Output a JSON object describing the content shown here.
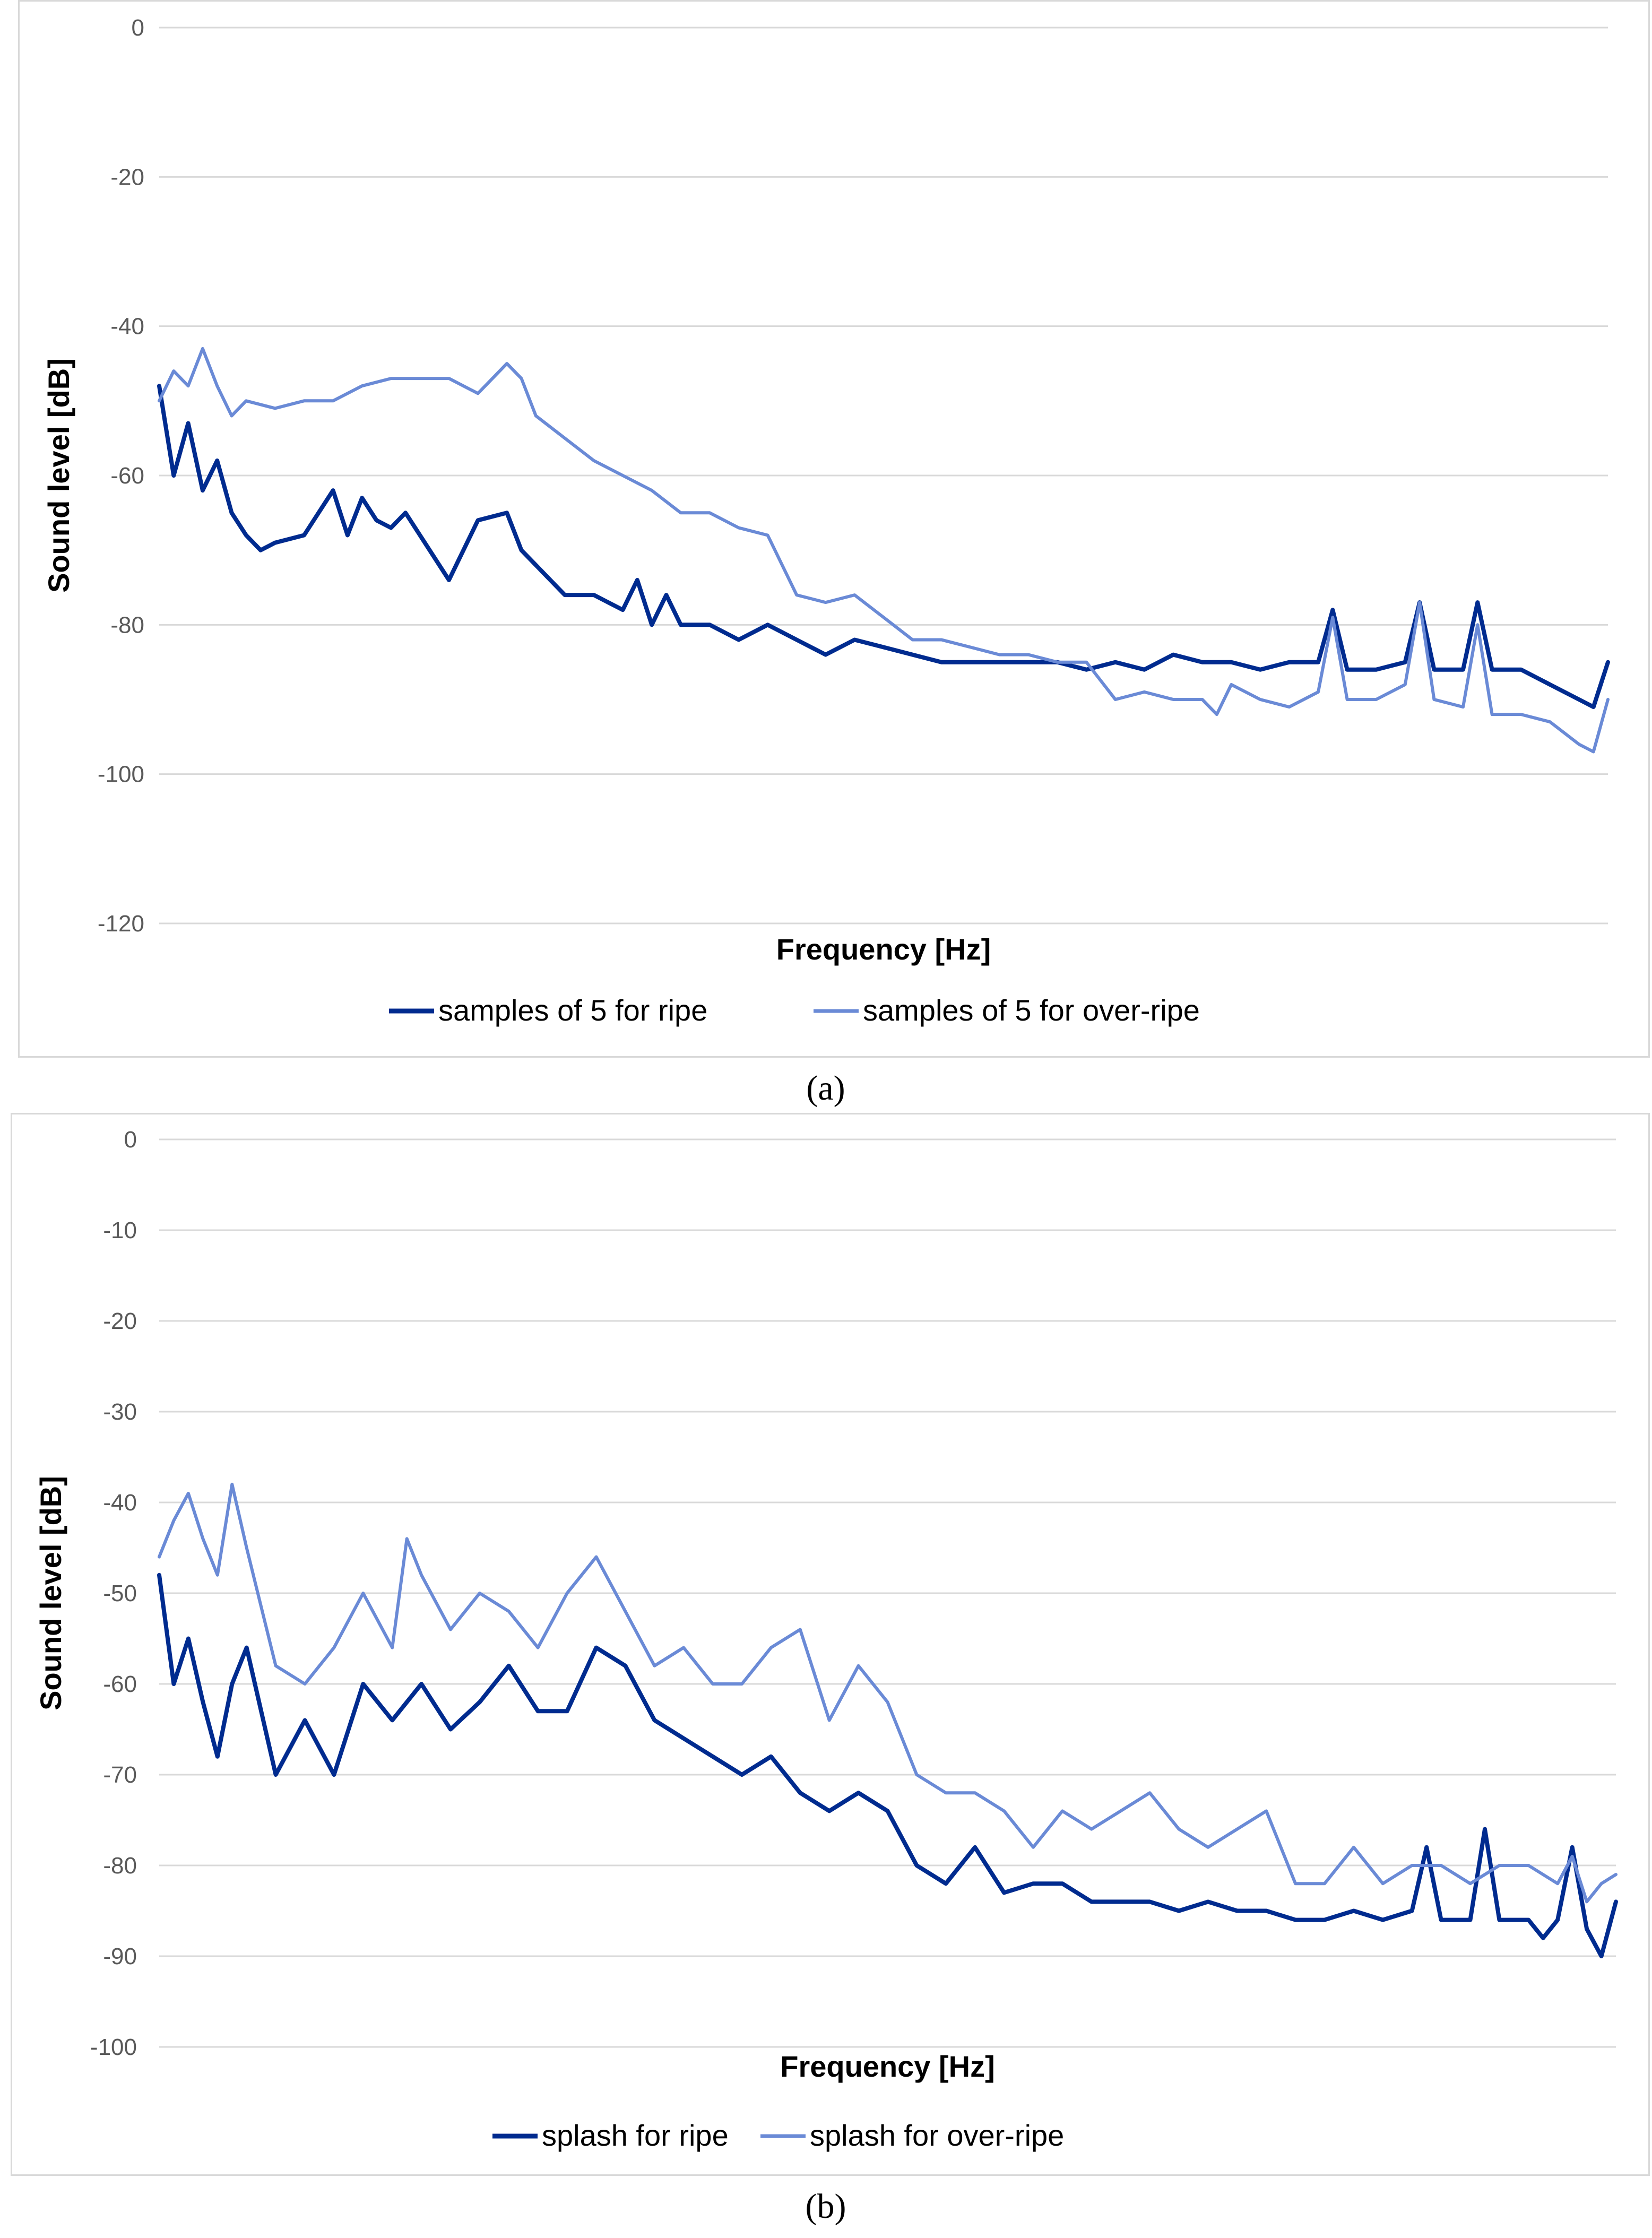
{
  "chart_data": [
    {
      "id": "a",
      "type": "line",
      "caption": "(a)",
      "xlabel": "Frequency [Hz]",
      "ylabel": "Sound level [dB]",
      "ylim": [
        -120,
        0
      ],
      "yticks": [
        0,
        -20,
        -40,
        -60,
        -80,
        -100,
        -120
      ],
      "xlim": [
        0,
        1
      ],
      "grid": true,
      "legend": "bottom",
      "series": [
        {
          "name": "samples of 5 for ripe",
          "color": "#002b8f",
          "x": [
            0,
            0.01,
            0.02,
            0.03,
            0.04,
            0.05,
            0.06,
            0.07,
            0.08,
            0.1,
            0.12,
            0.13,
            0.14,
            0.15,
            0.16,
            0.17,
            0.18,
            0.2,
            0.22,
            0.24,
            0.25,
            0.26,
            0.28,
            0.3,
            0.32,
            0.33,
            0.34,
            0.35,
            0.36,
            0.38,
            0.4,
            0.42,
            0.44,
            0.46,
            0.48,
            0.5,
            0.52,
            0.54,
            0.56,
            0.58,
            0.6,
            0.62,
            0.64,
            0.66,
            0.68,
            0.7,
            0.72,
            0.74,
            0.76,
            0.78,
            0.8,
            0.81,
            0.82,
            0.84,
            0.86,
            0.87,
            0.88,
            0.9,
            0.91,
            0.92,
            0.94,
            0.95,
            0.96,
            0.98,
            0.99,
            1.0
          ],
          "values": [
            -48,
            -60,
            -53,
            -62,
            -58,
            -65,
            -68,
            -70,
            -69,
            -68,
            -62,
            -68,
            -63,
            -66,
            -67,
            -65,
            -68,
            -74,
            -66,
            -65,
            -70,
            -72,
            -76,
            -76,
            -78,
            -74,
            -80,
            -76,
            -80,
            -80,
            -82,
            -80,
            -82,
            -84,
            -82,
            -83,
            -84,
            -85,
            -85,
            -85,
            -85,
            -85,
            -86,
            -85,
            -86,
            -84,
            -85,
            -85,
            -86,
            -85,
            -85,
            -78,
            -86,
            -86,
            -85,
            -77,
            -86,
            -86,
            -77,
            -86,
            -86,
            -87,
            -88,
            -90,
            -91,
            -85
          ]
        },
        {
          "name": "samples of 5 for over-ripe",
          "color": "#6a8ad6",
          "x": [
            0,
            0.01,
            0.02,
            0.03,
            0.04,
            0.05,
            0.06,
            0.08,
            0.1,
            0.12,
            0.14,
            0.16,
            0.18,
            0.2,
            0.22,
            0.24,
            0.25,
            0.26,
            0.28,
            0.3,
            0.32,
            0.34,
            0.36,
            0.38,
            0.4,
            0.42,
            0.44,
            0.46,
            0.48,
            0.5,
            0.52,
            0.54,
            0.56,
            0.58,
            0.6,
            0.62,
            0.64,
            0.66,
            0.68,
            0.7,
            0.72,
            0.73,
            0.74,
            0.76,
            0.78,
            0.8,
            0.81,
            0.82,
            0.84,
            0.86,
            0.87,
            0.88,
            0.9,
            0.91,
            0.92,
            0.94,
            0.96,
            0.98,
            0.99,
            1.0
          ],
          "values": [
            -50,
            -46,
            -48,
            -43,
            -48,
            -52,
            -50,
            -51,
            -50,
            -50,
            -48,
            -47,
            -47,
            -47,
            -49,
            -45,
            -47,
            -52,
            -55,
            -58,
            -60,
            -62,
            -65,
            -65,
            -67,
            -68,
            -76,
            -77,
            -76,
            -79,
            -82,
            -82,
            -83,
            -84,
            -84,
            -85,
            -85,
            -90,
            -89,
            -90,
            -90,
            -92,
            -88,
            -90,
            -91,
            -89,
            -79,
            -90,
            -90,
            -88,
            -77,
            -90,
            -91,
            -80,
            -92,
            -92,
            -93,
            -96,
            -97,
            -90
          ]
        }
      ]
    },
    {
      "id": "b",
      "type": "line",
      "caption": "(b)",
      "xlabel": "Frequency [Hz]",
      "ylabel": "Sound level [dB]",
      "ylim": [
        -100,
        0
      ],
      "yticks": [
        0,
        -10,
        -20,
        -30,
        -40,
        -50,
        -60,
        -70,
        -80,
        -90,
        -100
      ],
      "xlim": [
        0,
        1
      ],
      "grid": true,
      "legend": "bottom",
      "series": [
        {
          "name": "splash for ripe",
          "color": "#002b8f",
          "x": [
            0,
            0.01,
            0.02,
            0.03,
            0.04,
            0.05,
            0.06,
            0.08,
            0.1,
            0.12,
            0.14,
            0.16,
            0.18,
            0.2,
            0.22,
            0.24,
            0.26,
            0.28,
            0.3,
            0.32,
            0.34,
            0.36,
            0.38,
            0.4,
            0.42,
            0.44,
            0.46,
            0.48,
            0.5,
            0.52,
            0.54,
            0.56,
            0.58,
            0.6,
            0.62,
            0.64,
            0.66,
            0.68,
            0.7,
            0.72,
            0.74,
            0.76,
            0.78,
            0.8,
            0.82,
            0.84,
            0.86,
            0.87,
            0.88,
            0.9,
            0.91,
            0.92,
            0.94,
            0.95,
            0.96,
            0.97,
            0.98,
            0.99,
            1.0
          ],
          "values": [
            -48,
            -60,
            -55,
            -62,
            -68,
            -60,
            -56,
            -70,
            -64,
            -70,
            -60,
            -64,
            -60,
            -65,
            -62,
            -58,
            -63,
            -63,
            -56,
            -58,
            -64,
            -66,
            -68,
            -70,
            -68,
            -72,
            -74,
            -72,
            -74,
            -80,
            -82,
            -78,
            -83,
            -82,
            -82,
            -84,
            -84,
            -84,
            -85,
            -84,
            -85,
            -85,
            -86,
            -86,
            -85,
            -86,
            -85,
            -78,
            -86,
            -86,
            -76,
            -86,
            -86,
            -88,
            -86,
            -78,
            -87,
            -90,
            -84
          ]
        },
        {
          "name": "splash for over-ripe",
          "color": "#6a8ad6",
          "x": [
            0,
            0.01,
            0.02,
            0.03,
            0.04,
            0.05,
            0.06,
            0.08,
            0.1,
            0.12,
            0.14,
            0.16,
            0.17,
            0.18,
            0.2,
            0.22,
            0.24,
            0.26,
            0.28,
            0.3,
            0.32,
            0.34,
            0.36,
            0.38,
            0.4,
            0.42,
            0.44,
            0.46,
            0.48,
            0.5,
            0.52,
            0.54,
            0.56,
            0.58,
            0.6,
            0.62,
            0.64,
            0.66,
            0.68,
            0.7,
            0.72,
            0.74,
            0.76,
            0.78,
            0.8,
            0.82,
            0.84,
            0.86,
            0.88,
            0.9,
            0.92,
            0.94,
            0.96,
            0.97,
            0.98,
            0.99,
            1.0
          ],
          "values": [
            -46,
            -42,
            -39,
            -44,
            -48,
            -38,
            -45,
            -58,
            -60,
            -56,
            -50,
            -56,
            -44,
            -48,
            -54,
            -50,
            -52,
            -56,
            -50,
            -46,
            -52,
            -58,
            -56,
            -60,
            -60,
            -56,
            -54,
            -64,
            -58,
            -62,
            -70,
            -72,
            -72,
            -74,
            -78,
            -74,
            -76,
            -74,
            -72,
            -76,
            -78,
            -76,
            -74,
            -82,
            -82,
            -78,
            -82,
            -80,
            -80,
            -82,
            -80,
            -80,
            -82,
            -79,
            -84,
            -82,
            -81
          ]
        }
      ]
    }
  ]
}
